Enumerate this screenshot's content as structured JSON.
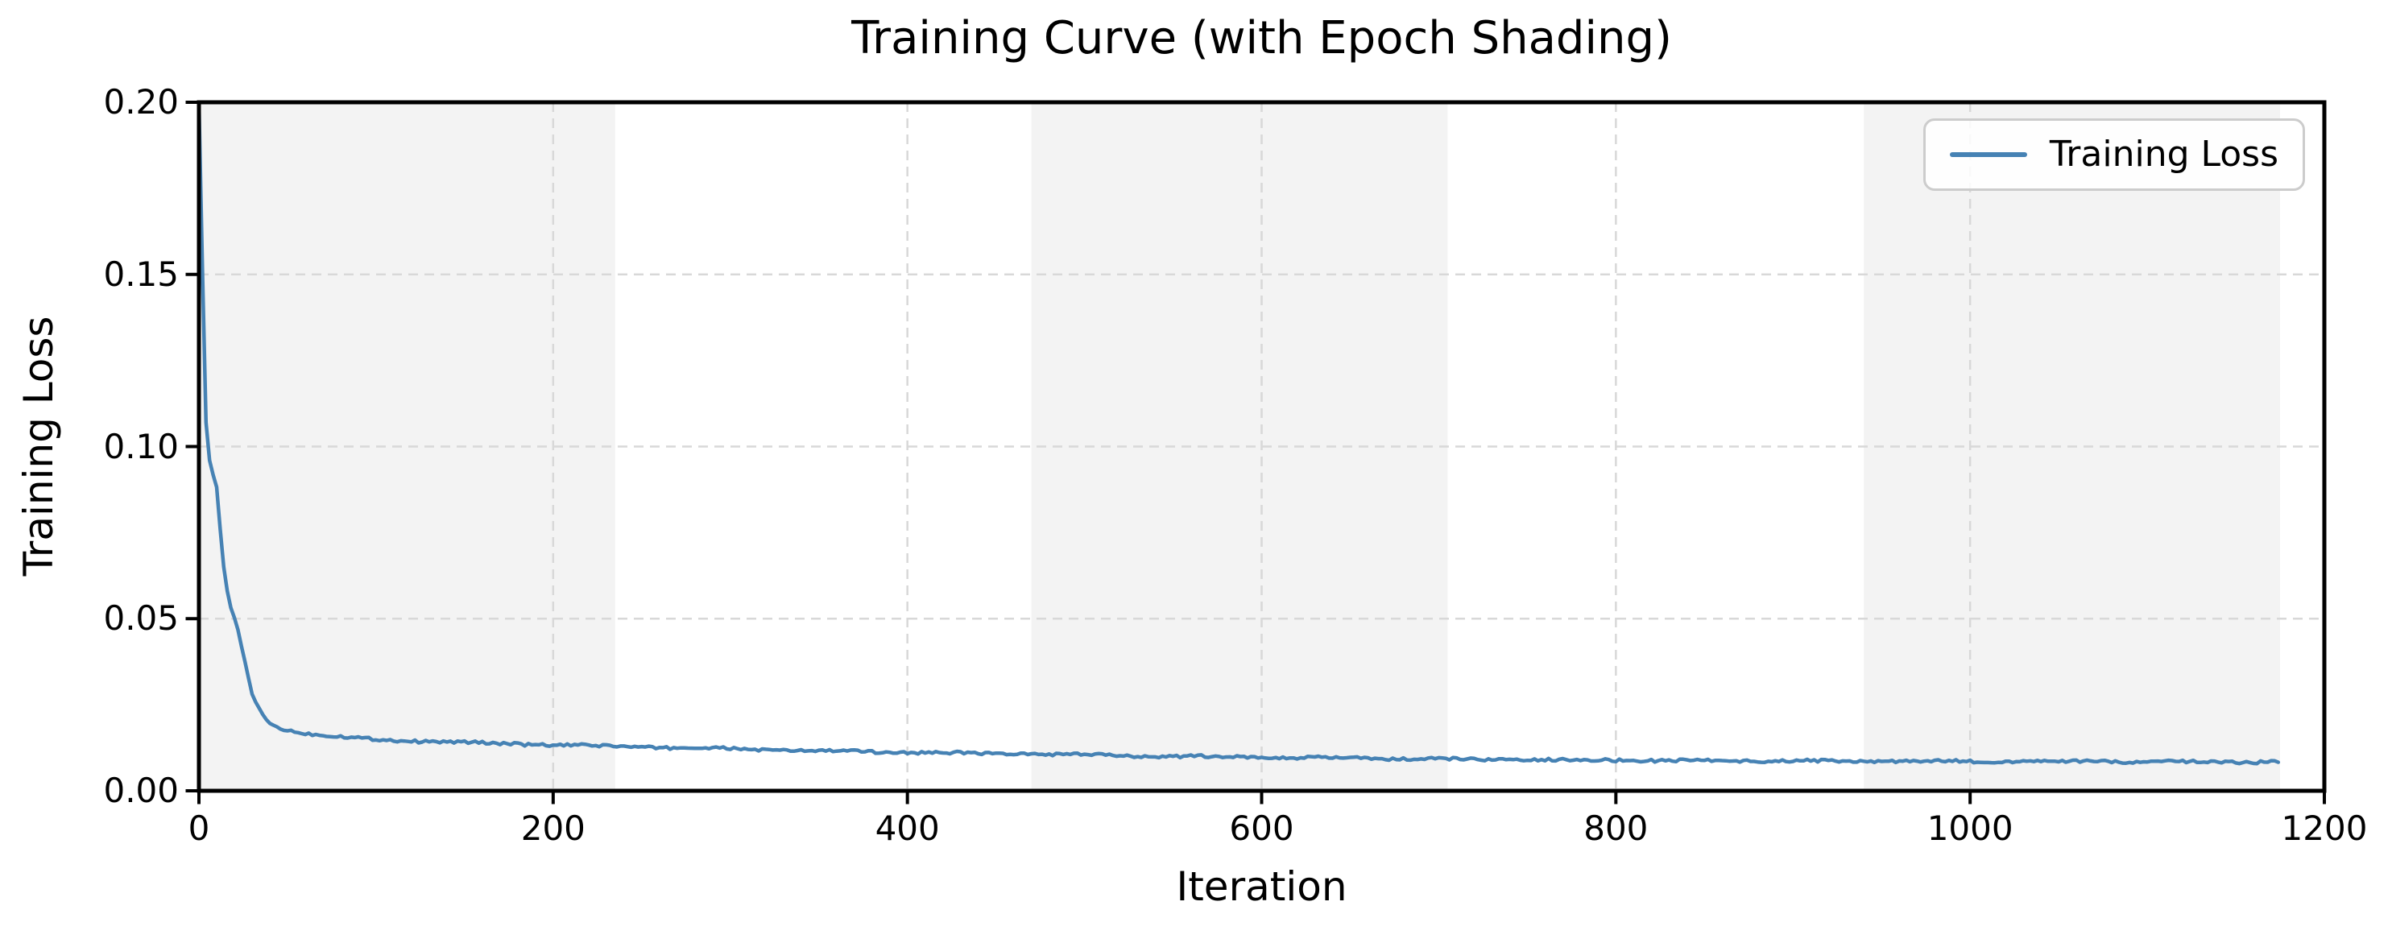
{
  "chart_data": {
    "type": "line",
    "title": "Training Curve (with Epoch Shading)",
    "xlabel": "Iteration",
    "ylabel": "Training Loss",
    "xlim": [
      0,
      1200
    ],
    "ylim": [
      0.0,
      0.2
    ],
    "xticks": [
      0,
      200,
      400,
      600,
      800,
      1000,
      1200
    ],
    "xtick_labels": [
      "0",
      "200",
      "400",
      "600",
      "800",
      "1000",
      "1200"
    ],
    "yticks": [
      0.0,
      0.05,
      0.1,
      0.15,
      0.2
    ],
    "ytick_labels": [
      "0.00",
      "0.05",
      "0.10",
      "0.15",
      "0.20"
    ],
    "grid": true,
    "grid_style": "dashed",
    "legend": {
      "position": "upper right",
      "entries": [
        {
          "label": "Training Loss",
          "color": "#4682b4"
        }
      ]
    },
    "epoch_shading": {
      "bands": [
        [
          0,
          235
        ],
        [
          470,
          705
        ],
        [
          940,
          1175
        ]
      ],
      "color": "#f3f3f3"
    },
    "series": [
      {
        "name": "Training Loss",
        "color": "#4682b4",
        "line_width": 4.5,
        "noise_amplitude": 0.0004,
        "points": [
          [
            0,
            0.2
          ],
          [
            1,
            0.176
          ],
          [
            2,
            0.151
          ],
          [
            3,
            0.128
          ],
          [
            4,
            0.107
          ],
          [
            5,
            0.0995
          ],
          [
            6,
            0.096
          ],
          [
            7,
            0.0935
          ],
          [
            8,
            0.0918
          ],
          [
            9,
            0.0905
          ],
          [
            10,
            0.0882
          ],
          [
            11,
            0.082
          ],
          [
            12,
            0.076
          ],
          [
            13,
            0.0702
          ],
          [
            14,
            0.065
          ],
          [
            15,
            0.0612
          ],
          [
            16,
            0.058
          ],
          [
            17,
            0.0553
          ],
          [
            18,
            0.0532
          ],
          [
            19,
            0.0516
          ],
          [
            20,
            0.0503
          ],
          [
            21,
            0.0492
          ],
          [
            22,
            0.0468
          ],
          [
            23,
            0.0444
          ],
          [
            24,
            0.042
          ],
          [
            25,
            0.0398
          ],
          [
            26,
            0.0375
          ],
          [
            27,
            0.0352
          ],
          [
            28,
            0.0327
          ],
          [
            29,
            0.03
          ],
          [
            30,
            0.0281
          ],
          [
            32,
            0.0258
          ],
          [
            34,
            0.024
          ],
          [
            36,
            0.0222
          ],
          [
            38,
            0.0207
          ],
          [
            40,
            0.0196
          ],
          [
            43,
            0.0188
          ],
          [
            46,
            0.0182
          ],
          [
            50,
            0.0177
          ],
          [
            55,
            0.0171
          ],
          [
            60,
            0.0167
          ],
          [
            70,
            0.0161
          ],
          [
            80,
            0.0157
          ],
          [
            90,
            0.0153
          ],
          [
            100,
            0.0149
          ],
          [
            120,
            0.0145
          ],
          [
            140,
            0.0142
          ],
          [
            160,
            0.0139
          ],
          [
            180,
            0.0136
          ],
          [
            200,
            0.0133
          ],
          [
            220,
            0.0131
          ],
          [
            235,
            0.0129
          ],
          [
            260,
            0.0126
          ],
          [
            280,
            0.0124
          ],
          [
            300,
            0.0122
          ],
          [
            320,
            0.0119
          ],
          [
            340,
            0.0117
          ],
          [
            360,
            0.0115
          ],
          [
            380,
            0.0113
          ],
          [
            400,
            0.0112
          ],
          [
            425,
            0.011
          ],
          [
            450,
            0.0108
          ],
          [
            470,
            0.0107
          ],
          [
            500,
            0.0104
          ],
          [
            525,
            0.0102
          ],
          [
            550,
            0.01
          ],
          [
            575,
            0.0099
          ],
          [
            600,
            0.0097
          ],
          [
            625,
            0.0096
          ],
          [
            650,
            0.0095
          ],
          [
            675,
            0.0093
          ],
          [
            700,
            0.0092
          ],
          [
            725,
            0.0091
          ],
          [
            750,
            0.009
          ],
          [
            775,
            0.009
          ],
          [
            800,
            0.0089
          ],
          [
            825,
            0.0088
          ],
          [
            850,
            0.0088
          ],
          [
            875,
            0.0087
          ],
          [
            900,
            0.0087
          ],
          [
            925,
            0.0086
          ],
          [
            950,
            0.0086
          ],
          [
            975,
            0.0086
          ],
          [
            1000,
            0.0085
          ],
          [
            1025,
            0.0085
          ],
          [
            1050,
            0.0085
          ],
          [
            1075,
            0.0085
          ],
          [
            1100,
            0.0084
          ],
          [
            1125,
            0.0084
          ],
          [
            1150,
            0.0084
          ],
          [
            1175,
            0.0084
          ]
        ]
      }
    ]
  },
  "colors": {
    "line": "#4682b4",
    "band": "#f3f3f3",
    "grid": "#d8d8d8",
    "spine": "#000000",
    "text": "#000000",
    "legend_border": "#cccccc",
    "background": "#ffffff"
  }
}
